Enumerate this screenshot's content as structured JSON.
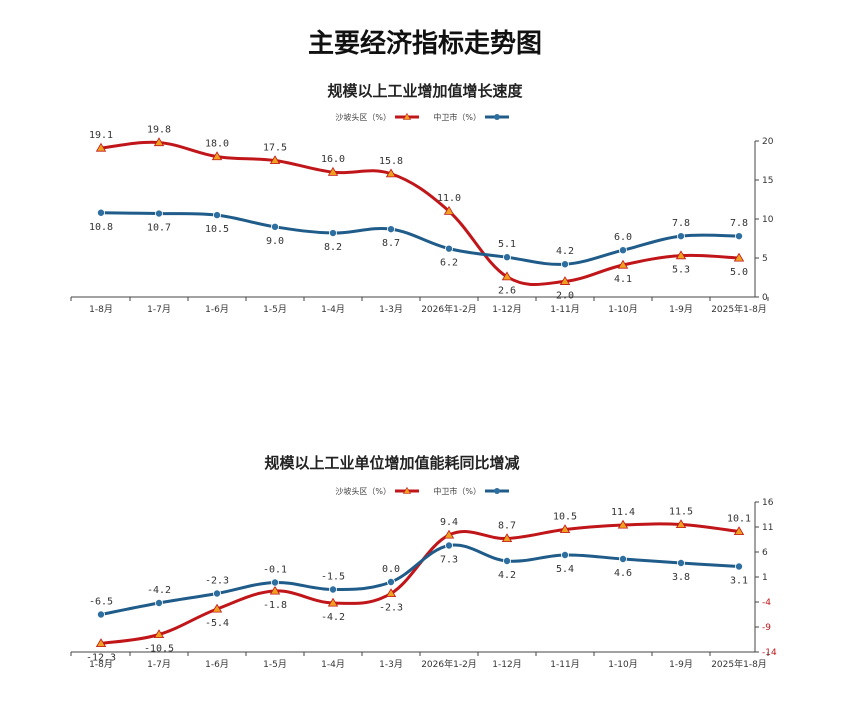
{
  "page_title": "主要经济指标走势图",
  "colors": {
    "zhongwei": "#1f5c8a",
    "shapotou": "#c0161a",
    "zhongwei_marker": "#2f6fa0",
    "shapotou_marker": "#f0a020"
  },
  "chart_data": [
    {
      "type": "line",
      "title": "规模以上工业增加值增长速度",
      "categories": [
        "2025年1-8月",
        "1-9月",
        "1-10月",
        "1-11月",
        "1-12月",
        "2026年1-2月",
        "1-3月",
        "1-4月",
        "1-5月",
        "1-6月",
        "1-7月",
        "1-8月"
      ],
      "axis_position": "right",
      "ylim": [
        0,
        20
      ],
      "yticks": [
        0,
        5,
        10,
        15,
        20
      ],
      "legend_placement": "top-center",
      "grid": false,
      "series": [
        {
          "name": "中卫市（%）",
          "values": [
            7.8,
            7.8,
            6.0,
            4.2,
            5.1,
            6.2,
            8.7,
            8.2,
            9.0,
            10.5,
            10.7,
            10.8
          ],
          "labels": [
            "7.8",
            "7.8",
            "6.0",
            "4.2",
            "5.1",
            "6.2",
            "8.7",
            "8.2",
            "9.0",
            "10.5",
            "10.7",
            "10.8"
          ]
        },
        {
          "name": "沙坡头区（%）",
          "values": [
            5.0,
            5.3,
            4.1,
            2.0,
            2.6,
            11.0,
            15.8,
            16.0,
            17.5,
            18.0,
            19.8,
            19.1
          ],
          "labels": [
            "5.0",
            "5.3",
            "4.1",
            "2.0",
            "2.6",
            "11.0",
            "15.8",
            "16.0",
            "17.5",
            "18.0",
            "19.8",
            "19.1"
          ]
        }
      ]
    },
    {
      "type": "line",
      "title": "规模以上工业单位增加值能耗同比增减",
      "categories": [
        "2025年1-8月",
        "1-9月",
        "1-10月",
        "1-11月",
        "1-12月",
        "2026年1-2月",
        "1-3月",
        "1-4月",
        "1-5月",
        "1-6月",
        "1-7月",
        "1-8月"
      ],
      "axis_position": "right",
      "ylim": [
        -14,
        16
      ],
      "yticks": [
        -14,
        -9,
        -4,
        1,
        6,
        11,
        16
      ],
      "legend_placement": "top-center",
      "grid": false,
      "series": [
        {
          "name": "中卫市（%）",
          "values": [
            3.1,
            3.8,
            4.6,
            5.4,
            4.2,
            7.3,
            0.0,
            -1.5,
            -0.1,
            -2.3,
            -4.2,
            -6.5
          ],
          "labels": [
            "3.1",
            "3.8",
            "4.6",
            "5.4",
            "4.2",
            "7.3",
            "0.0",
            "-1.5",
            "-0.1",
            "-2.3",
            "-4.2",
            "-6.5"
          ]
        },
        {
          "name": "沙坡头区（%）",
          "values": [
            10.1,
            11.5,
            11.4,
            10.5,
            8.7,
            9.4,
            -2.3,
            -4.2,
            -1.8,
            -5.4,
            -10.5,
            -12.3
          ],
          "labels": [
            "10.1",
            "11.5",
            "11.4",
            "10.5",
            "8.7",
            "9.4",
            "-2.3",
            "-4.2",
            "-1.8",
            "-5.4",
            "-10.5",
            "-12.3"
          ]
        }
      ]
    }
  ]
}
